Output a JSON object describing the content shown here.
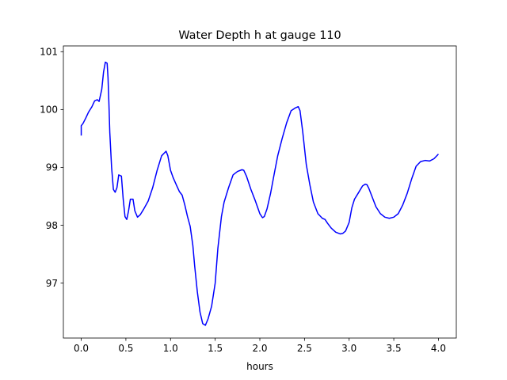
{
  "chart_data": {
    "type": "line",
    "title": "Water Depth h at gauge 110",
    "xlabel": "hours",
    "ylabel": "",
    "xlim": [
      -0.2,
      4.2
    ],
    "ylim": [
      96.05,
      101.1
    ],
    "xticks": [
      0.0,
      0.5,
      1.0,
      1.5,
      2.0,
      2.5,
      3.0,
      3.5,
      4.0
    ],
    "xtick_labels": [
      "0.0",
      "0.5",
      "1.0",
      "1.5",
      "2.0",
      "2.5",
      "3.0",
      "3.5",
      "4.0"
    ],
    "yticks": [
      97,
      98,
      99,
      100,
      101
    ],
    "ytick_labels": [
      "97",
      "98",
      "99",
      "100",
      "101"
    ],
    "grid": false,
    "colors": {
      "line": "#0000ff",
      "axes": "#000000",
      "background": "#ffffff"
    },
    "series": [
      {
        "x": [
          0.0,
          0.0,
          0.02,
          0.05,
          0.08,
          0.12,
          0.15,
          0.18,
          0.2,
          0.23,
          0.25,
          0.27,
          0.29,
          0.3,
          0.31,
          0.32,
          0.34,
          0.36,
          0.38,
          0.4,
          0.42,
          0.45,
          0.47,
          0.49,
          0.51,
          0.53,
          0.55,
          0.58,
          0.6,
          0.63,
          0.66,
          0.7,
          0.75,
          0.8,
          0.85,
          0.9,
          0.95,
          0.97,
          1.0,
          1.03,
          1.07,
          1.1,
          1.13,
          1.16,
          1.19,
          1.22,
          1.25,
          1.27,
          1.3,
          1.33,
          1.36,
          1.39,
          1.42,
          1.46,
          1.5,
          1.53,
          1.57,
          1.6,
          1.65,
          1.7,
          1.75,
          1.8,
          1.82,
          1.85,
          1.9,
          1.95,
          2.0,
          2.03,
          2.05,
          2.08,
          2.12,
          2.16,
          2.2,
          2.25,
          2.3,
          2.35,
          2.4,
          2.43,
          2.45,
          2.48,
          2.52,
          2.56,
          2.6,
          2.65,
          2.7,
          2.73,
          2.76,
          2.8,
          2.85,
          2.9,
          2.93,
          2.96,
          3.0,
          3.03,
          3.06,
          3.1,
          3.15,
          3.18,
          3.2,
          3.22,
          3.25,
          3.3,
          3.35,
          3.4,
          3.45,
          3.5,
          3.55,
          3.6,
          3.65,
          3.7,
          3.75,
          3.8,
          3.85,
          3.9,
          3.95,
          4.0
        ],
        "y": [
          99.55,
          99.72,
          99.76,
          99.85,
          99.95,
          100.05,
          100.15,
          100.17,
          100.14,
          100.35,
          100.65,
          100.82,
          100.8,
          100.55,
          100.1,
          99.6,
          99.0,
          98.62,
          98.57,
          98.65,
          98.87,
          98.85,
          98.45,
          98.15,
          98.1,
          98.25,
          98.45,
          98.45,
          98.25,
          98.14,
          98.18,
          98.28,
          98.42,
          98.65,
          98.95,
          99.2,
          99.28,
          99.2,
          98.95,
          98.82,
          98.68,
          98.58,
          98.52,
          98.35,
          98.15,
          97.98,
          97.65,
          97.3,
          96.85,
          96.5,
          96.3,
          96.27,
          96.38,
          96.6,
          97.0,
          97.6,
          98.15,
          98.4,
          98.65,
          98.87,
          98.93,
          98.96,
          98.95,
          98.85,
          98.62,
          98.42,
          98.2,
          98.13,
          98.15,
          98.28,
          98.55,
          98.88,
          99.2,
          99.5,
          99.77,
          99.98,
          100.03,
          100.05,
          99.98,
          99.62,
          99.05,
          98.7,
          98.4,
          98.2,
          98.12,
          98.1,
          98.03,
          97.95,
          97.88,
          97.85,
          97.86,
          97.9,
          98.05,
          98.3,
          98.45,
          98.55,
          98.68,
          98.71,
          98.7,
          98.64,
          98.52,
          98.32,
          98.2,
          98.14,
          98.12,
          98.14,
          98.2,
          98.35,
          98.55,
          98.8,
          99.02,
          99.1,
          99.12,
          99.11,
          99.15,
          99.23
        ]
      }
    ]
  }
}
